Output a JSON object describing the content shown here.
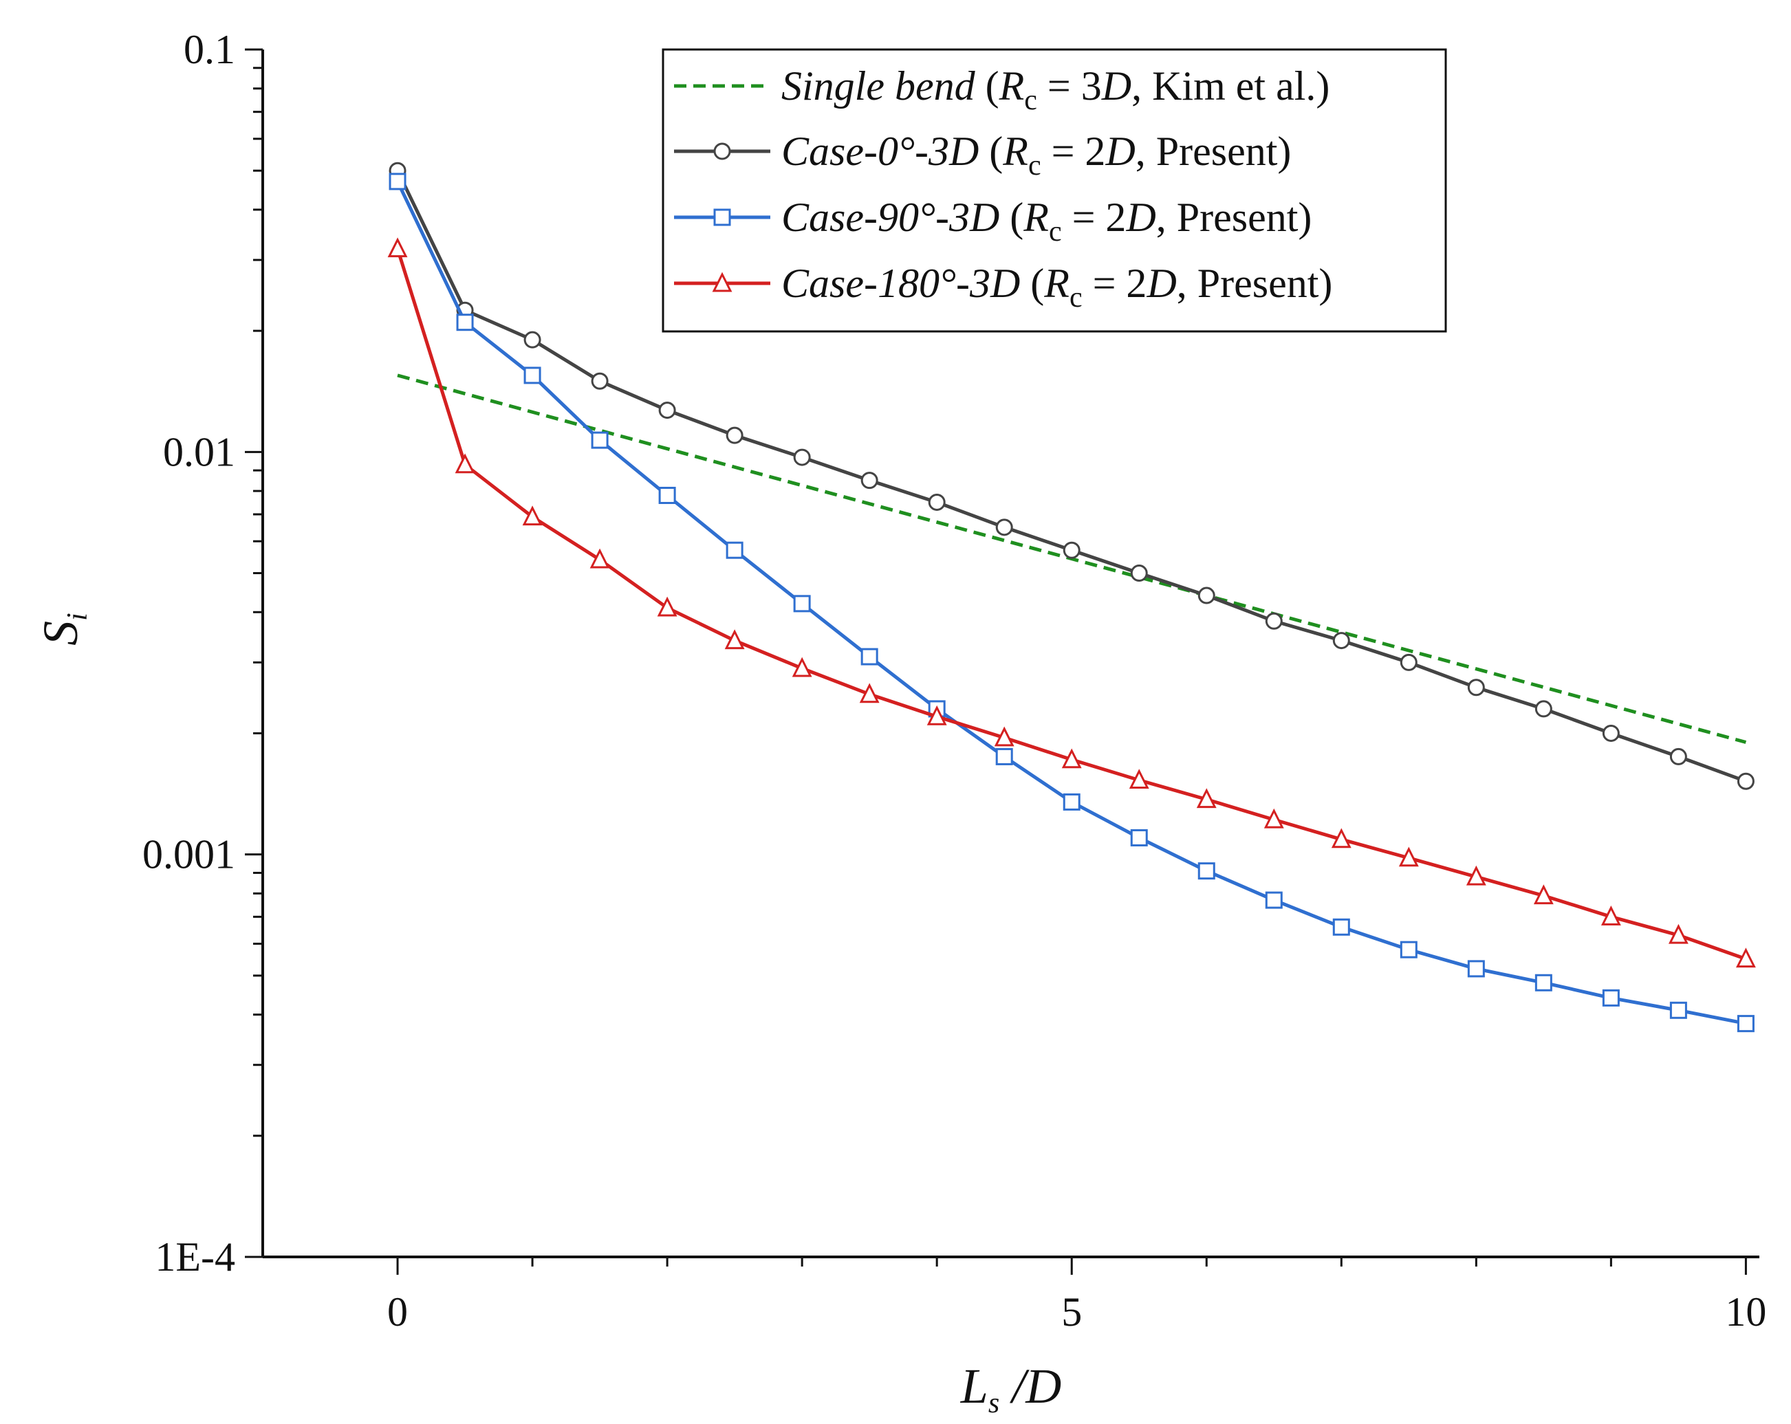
{
  "chart_data": {
    "type": "line",
    "y_scale": "log",
    "xlim": [
      -1,
      10.1
    ],
    "ylim": [
      0.0001,
      0.1
    ],
    "x_ticks": [
      {
        "value": 0,
        "label": "0"
      },
      {
        "value": 5,
        "label": "5"
      },
      {
        "value": 10,
        "label": "10"
      }
    ],
    "y_ticks": [
      {
        "value": 0.1,
        "label": "0.1"
      },
      {
        "value": 0.01,
        "label": "0.01"
      },
      {
        "value": 0.001,
        "label": "0.001"
      },
      {
        "value": 0.0001,
        "label": "1E-4"
      }
    ],
    "xlabel": {
      "main": "L",
      "sub": "s",
      "rest": " /D"
    },
    "ylabel": {
      "main": "S",
      "sub": "i"
    },
    "legend_position": "top-right",
    "series": [
      {
        "id": "single",
        "color": "#1f8f1f",
        "dash": "dashed",
        "marker": "none",
        "legend": {
          "name": "Single bend",
          "open": " (",
          "r": "R",
          "r_sub": "c",
          "eq": " = 3",
          "d": "D",
          "tail": ", Kim et al.)"
        },
        "x": [
          0,
          10
        ],
        "y": [
          0.0155,
          0.0019
        ]
      },
      {
        "id": "case0",
        "color": "#444444",
        "dash": "solid",
        "marker": "circle",
        "legend": {
          "name": "Case-0°-3D",
          "open": " (",
          "r": "R",
          "r_sub": "c",
          "eq": " = 2",
          "d": "D",
          "tail": ", Present)"
        },
        "x": [
          0,
          0.5,
          1,
          1.5,
          2,
          2.5,
          3,
          3.5,
          4,
          4.5,
          5,
          5.5,
          6,
          6.5,
          7,
          7.5,
          8,
          8.5,
          9,
          9.5,
          10
        ],
        "y": [
          0.05,
          0.0225,
          0.019,
          0.015,
          0.0127,
          0.011,
          0.0097,
          0.0085,
          0.0075,
          0.0065,
          0.0057,
          0.005,
          0.0044,
          0.0038,
          0.0034,
          0.003,
          0.0026,
          0.0023,
          0.002,
          0.00175,
          0.00152
        ]
      },
      {
        "id": "case90",
        "color": "#2f6fd0",
        "dash": "solid",
        "marker": "square",
        "legend": {
          "name": "Case-90°-3D",
          "open": " (",
          "r": "R",
          "r_sub": "c",
          "eq": " = 2",
          "d": "D",
          "tail": ", Present)"
        },
        "x": [
          0,
          0.5,
          1,
          1.5,
          2,
          2.5,
          3,
          3.5,
          4,
          4.5,
          5,
          5.5,
          6,
          6.5,
          7,
          7.5,
          8,
          8.5,
          9,
          9.5,
          10
        ],
        "y": [
          0.047,
          0.021,
          0.0155,
          0.0107,
          0.0078,
          0.0057,
          0.0042,
          0.0031,
          0.0023,
          0.00175,
          0.00135,
          0.0011,
          0.00091,
          0.00077,
          0.00066,
          0.00058,
          0.00052,
          0.00048,
          0.00044,
          0.00041,
          0.00038
        ]
      },
      {
        "id": "case180",
        "color": "#d42020",
        "dash": "solid",
        "marker": "triangle",
        "legend": {
          "name": "Case-180°-3D",
          "open": " (",
          "r": "R",
          "r_sub": "c",
          "eq": " = 2",
          "d": "D",
          "tail": ", Present)"
        },
        "x": [
          0,
          0.5,
          1,
          1.5,
          2,
          2.5,
          3,
          3.5,
          4,
          4.5,
          5,
          5.5,
          6,
          6.5,
          7,
          7.5,
          8,
          8.5,
          9,
          9.5,
          10
        ],
        "y": [
          0.032,
          0.0093,
          0.0069,
          0.0054,
          0.0041,
          0.0034,
          0.0029,
          0.0025,
          0.0022,
          0.00195,
          0.00172,
          0.00153,
          0.00137,
          0.00122,
          0.00109,
          0.00098,
          0.00088,
          0.00079,
          0.0007,
          0.00063,
          0.00055
        ]
      }
    ]
  }
}
